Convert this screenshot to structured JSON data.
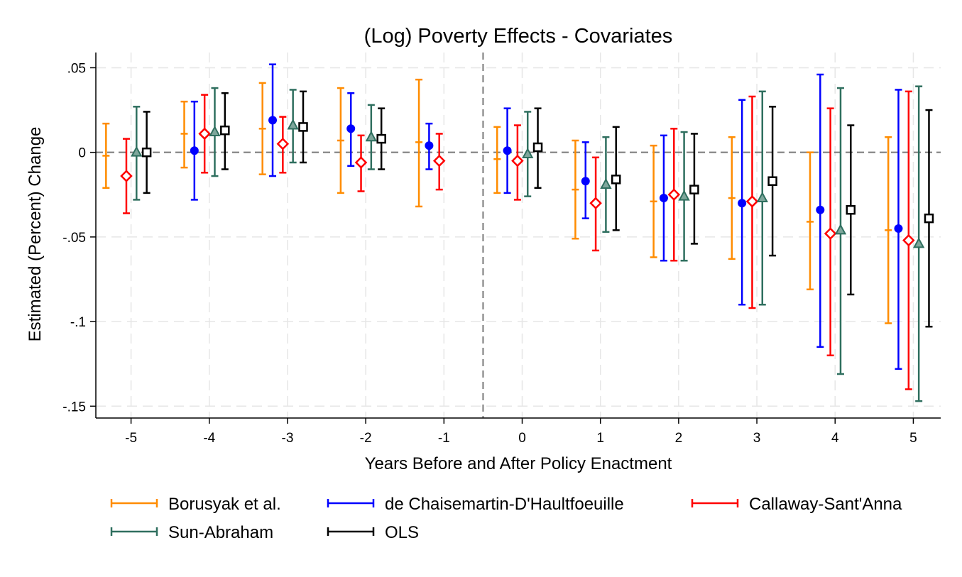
{
  "chart_data": {
    "type": "scatter",
    "title": "(Log) Poverty Effects - Covariates",
    "xlabel": "Years Before and After Policy Enactment",
    "ylabel": "Estimated (Percent) Change",
    "categories": [
      "-5",
      "-4",
      "-3",
      "-2",
      "-1",
      "0",
      "1",
      "2",
      "3",
      "4",
      "5"
    ],
    "x": [
      -5,
      -4,
      -3,
      -2,
      -1,
      0,
      1,
      2,
      3,
      4,
      5
    ],
    "yticks": [
      0.05,
      0,
      -0.05,
      -0.1,
      -0.15
    ],
    "ytick_labels": [
      ".05",
      "0",
      "-.05",
      "-.1",
      "-.15"
    ],
    "ylim": [
      -0.157,
      0.059
    ],
    "xlim": [
      -5.45,
      5.35
    ],
    "reference_lines": {
      "horizontal_y": 0,
      "vertical_x": -0.5
    },
    "grid": true,
    "legend_position": "bottom",
    "series": [
      {
        "name": "Borusyak et al.",
        "color": "#ff8c00",
        "marker": "tick",
        "offset": -0.32,
        "estimate": [
          -0.002,
          0.011,
          0.014,
          0.007,
          0.006,
          -0.004,
          -0.022,
          -0.029,
          -0.027,
          -0.041,
          -0.046
        ],
        "lower": [
          -0.021,
          -0.009,
          -0.013,
          -0.024,
          -0.032,
          -0.024,
          -0.051,
          -0.062,
          -0.063,
          -0.081,
          -0.101
        ],
        "upper": [
          0.017,
          0.03,
          0.041,
          0.038,
          0.043,
          0.015,
          0.007,
          0.004,
          0.009,
          0.0,
          0.009
        ]
      },
      {
        "name": "de Chaisemartin-D'Haultfoeuille",
        "color": "#0000ff",
        "marker": "circle",
        "offset": -0.19,
        "estimate": [
          null,
          0.001,
          0.019,
          0.014,
          0.004,
          0.001,
          -0.017,
          -0.027,
          -0.03,
          -0.034,
          -0.045
        ],
        "lower": [
          null,
          -0.028,
          -0.014,
          -0.008,
          -0.01,
          -0.024,
          -0.039,
          -0.064,
          -0.09,
          -0.115,
          -0.128
        ],
        "upper": [
          null,
          0.03,
          0.052,
          0.035,
          0.017,
          0.026,
          0.006,
          0.01,
          0.031,
          0.046,
          0.037
        ]
      },
      {
        "name": "Callaway-Sant'Anna",
        "color": "#ff0000",
        "marker": "diamond",
        "offset": -0.06,
        "estimate": [
          -0.014,
          0.011,
          0.005,
          -0.006,
          -0.005,
          -0.005,
          -0.03,
          -0.025,
          -0.029,
          -0.048,
          -0.052
        ],
        "lower": [
          -0.036,
          -0.012,
          -0.012,
          -0.023,
          -0.022,
          -0.028,
          -0.058,
          -0.064,
          -0.092,
          -0.12,
          -0.14
        ],
        "upper": [
          0.008,
          0.034,
          0.021,
          0.01,
          0.011,
          0.016,
          -0.003,
          0.014,
          0.033,
          0.026,
          0.036
        ]
      },
      {
        "name": "Sun-Abraham",
        "color": "#2f6f5f",
        "marker": "triangle",
        "offset": 0.07,
        "estimate": [
          0.0,
          0.012,
          0.016,
          0.009,
          null,
          -0.001,
          -0.019,
          -0.026,
          -0.027,
          -0.046,
          -0.054
        ],
        "lower": [
          -0.028,
          -0.014,
          -0.006,
          -0.01,
          null,
          -0.026,
          -0.047,
          -0.064,
          -0.09,
          -0.131,
          -0.147
        ],
        "upper": [
          0.027,
          0.038,
          0.037,
          0.028,
          null,
          0.024,
          0.009,
          0.012,
          0.036,
          0.038,
          0.039
        ]
      },
      {
        "name": "OLS",
        "color": "#000000",
        "marker": "square",
        "offset": 0.2,
        "estimate": [
          0.0,
          0.013,
          0.015,
          0.008,
          null,
          0.003,
          -0.016,
          -0.022,
          -0.017,
          -0.034,
          -0.039
        ],
        "lower": [
          -0.024,
          -0.01,
          -0.006,
          -0.01,
          null,
          -0.021,
          -0.046,
          -0.054,
          -0.061,
          -0.084,
          -0.103
        ],
        "upper": [
          0.024,
          0.035,
          0.036,
          0.026,
          null,
          0.026,
          0.015,
          0.011,
          0.027,
          0.016,
          0.025
        ]
      }
    ]
  }
}
